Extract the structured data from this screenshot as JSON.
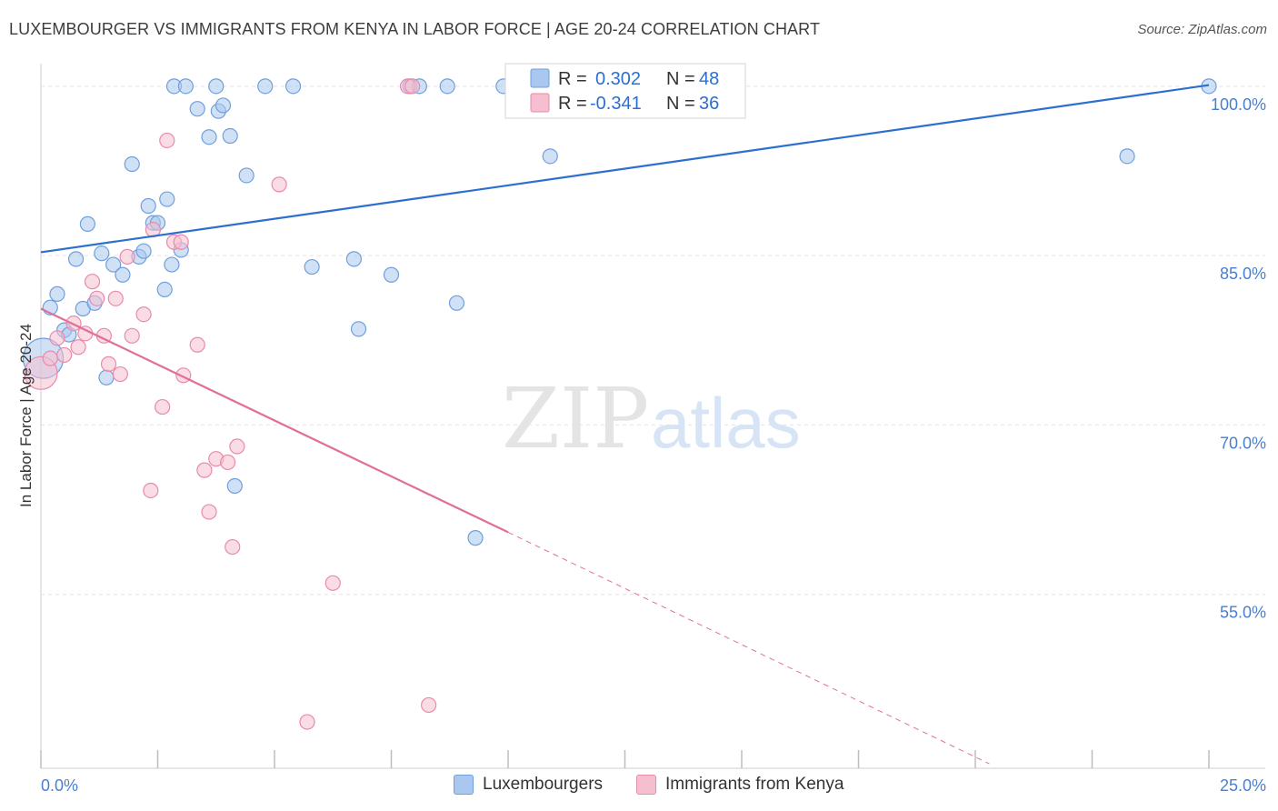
{
  "header": {
    "title": "LUXEMBOURGER VS IMMIGRANTS FROM KENYA IN LABOR FORCE | AGE 20-24 CORRELATION CHART",
    "source": "Source: ZipAtlas.com"
  },
  "watermark": {
    "zip": "ZIP",
    "atlas": "atlas"
  },
  "colors": {
    "blue_fill": "#aac8ef",
    "blue_stroke": "#6f9fdc",
    "blue_line": "#2c6fcf",
    "pink_fill": "#f5bfd0",
    "pink_stroke": "#e98aaa",
    "pink_line": "#e0709a",
    "tick_text": "#4a7fcf",
    "grid": "#e2e2e2"
  },
  "legend": {
    "rows": [
      {
        "r_label": "R = ",
        "r_value": "0.302",
        "n_label": "N = ",
        "n_value": "48"
      },
      {
        "r_label": "R = ",
        "r_value": "-0.341",
        "n_label": "N = ",
        "n_value": "36"
      }
    ]
  },
  "chart_data": {
    "type": "scatter",
    "title": "LUXEMBOURGER VS IMMIGRANTS FROM KENYA IN LABOR FORCE | AGE 20-24 CORRELATION CHART",
    "xlabel": "",
    "ylabel": "In Labor Force | Age 20-24",
    "xlim": [
      0,
      25
    ],
    "ylim": [
      39.6,
      102
    ],
    "x_tick_labels": [
      "0.0%",
      "25.0%"
    ],
    "x_tick_values": [
      0,
      25
    ],
    "y_ticks": [
      {
        "value": 100,
        "label": "100.0%"
      },
      {
        "value": 85,
        "label": "85.0%"
      },
      {
        "value": 70,
        "label": "70.0%"
      },
      {
        "value": 55,
        "label": "55.0%"
      }
    ],
    "grid": true,
    "legend_position": "top-center",
    "series": [
      {
        "name": "Luxembourgers",
        "color": "#aac8ef",
        "trend": {
          "x": [
            0,
            25
          ],
          "y": [
            85.3,
            100.1
          ]
        },
        "points": [
          [
            0.05,
            75.9,
            22
          ],
          [
            0.2,
            80.4,
            8
          ],
          [
            0.35,
            81.6,
            8
          ],
          [
            0.5,
            78.4,
            8
          ],
          [
            0.6,
            78.0,
            8
          ],
          [
            0.75,
            84.7,
            8
          ],
          [
            0.9,
            80.3,
            8
          ],
          [
            1.0,
            87.8,
            8
          ],
          [
            1.15,
            80.8,
            8
          ],
          [
            1.3,
            85.2,
            8
          ],
          [
            1.4,
            74.2,
            8
          ],
          [
            1.55,
            84.2,
            8
          ],
          [
            1.75,
            83.3,
            8
          ],
          [
            1.95,
            93.1,
            8
          ],
          [
            2.1,
            84.9,
            8
          ],
          [
            2.2,
            85.4,
            8
          ],
          [
            2.3,
            89.4,
            8
          ],
          [
            2.4,
            87.9,
            8
          ],
          [
            2.5,
            87.9,
            8
          ],
          [
            2.65,
            82.0,
            8
          ],
          [
            2.7,
            90.0,
            8
          ],
          [
            2.8,
            84.2,
            8
          ],
          [
            2.85,
            100.0,
            8
          ],
          [
            3.0,
            85.5,
            8
          ],
          [
            3.1,
            100.0,
            8
          ],
          [
            3.35,
            98.0,
            8
          ],
          [
            3.6,
            95.5,
            8
          ],
          [
            3.75,
            100.0,
            8
          ],
          [
            3.8,
            97.8,
            8
          ],
          [
            3.9,
            98.3,
            8
          ],
          [
            4.05,
            95.6,
            8
          ],
          [
            4.15,
            64.6,
            8
          ],
          [
            4.4,
            92.1,
            8
          ],
          [
            4.8,
            100.0,
            8
          ],
          [
            5.4,
            100.0,
            8
          ],
          [
            5.8,
            84.0,
            8
          ],
          [
            6.7,
            84.7,
            8
          ],
          [
            6.8,
            78.5,
            8
          ],
          [
            7.5,
            83.3,
            8
          ],
          [
            7.9,
            100.0,
            8
          ],
          [
            8.1,
            100.0,
            8
          ],
          [
            8.7,
            100.0,
            8
          ],
          [
            8.9,
            80.8,
            8
          ],
          [
            9.3,
            60.0,
            8
          ],
          [
            9.9,
            100.0,
            8
          ],
          [
            10.9,
            93.8,
            8
          ],
          [
            23.25,
            93.8,
            8
          ],
          [
            25.0,
            100.0,
            8
          ]
        ]
      },
      {
        "name": "Immigrants from Kenya",
        "color": "#f5bfd0",
        "trend": {
          "x": [
            0,
            10.0
          ],
          "y": [
            80.3,
            60.5
          ]
        },
        "trend_dashed": {
          "x": [
            10.0,
            20.3
          ],
          "y": [
            60.5,
            40.0
          ]
        },
        "points": [
          [
            0.0,
            74.6,
            18
          ],
          [
            0.2,
            75.9,
            8
          ],
          [
            0.35,
            77.7,
            8
          ],
          [
            0.5,
            76.2,
            8
          ],
          [
            0.7,
            79.0,
            8
          ],
          [
            0.8,
            76.9,
            8
          ],
          [
            0.95,
            78.1,
            8
          ],
          [
            1.1,
            82.7,
            8
          ],
          [
            1.2,
            81.2,
            8
          ],
          [
            1.35,
            77.9,
            8
          ],
          [
            1.45,
            75.4,
            8
          ],
          [
            1.6,
            81.2,
            8
          ],
          [
            1.7,
            74.5,
            8
          ],
          [
            1.85,
            84.9,
            8
          ],
          [
            1.95,
            77.9,
            8
          ],
          [
            2.2,
            79.8,
            8
          ],
          [
            2.4,
            87.3,
            8
          ],
          [
            2.6,
            71.6,
            8
          ],
          [
            2.7,
            95.2,
            8
          ],
          [
            2.85,
            86.2,
            8
          ],
          [
            3.0,
            86.2,
            8
          ],
          [
            3.05,
            74.4,
            8
          ],
          [
            3.35,
            77.1,
            8
          ],
          [
            3.5,
            66.0,
            8
          ],
          [
            3.6,
            62.3,
            8
          ],
          [
            3.75,
            67.0,
            8
          ],
          [
            4.0,
            66.7,
            8
          ],
          [
            4.1,
            59.2,
            8
          ],
          [
            4.2,
            68.1,
            8
          ],
          [
            5.1,
            91.3,
            8
          ],
          [
            2.35,
            64.2,
            8
          ],
          [
            5.7,
            43.7,
            8
          ],
          [
            6.25,
            56.0,
            8
          ],
          [
            7.85,
            100.0,
            8
          ],
          [
            7.95,
            100.0,
            8
          ],
          [
            8.3,
            45.2,
            8
          ]
        ]
      }
    ]
  }
}
